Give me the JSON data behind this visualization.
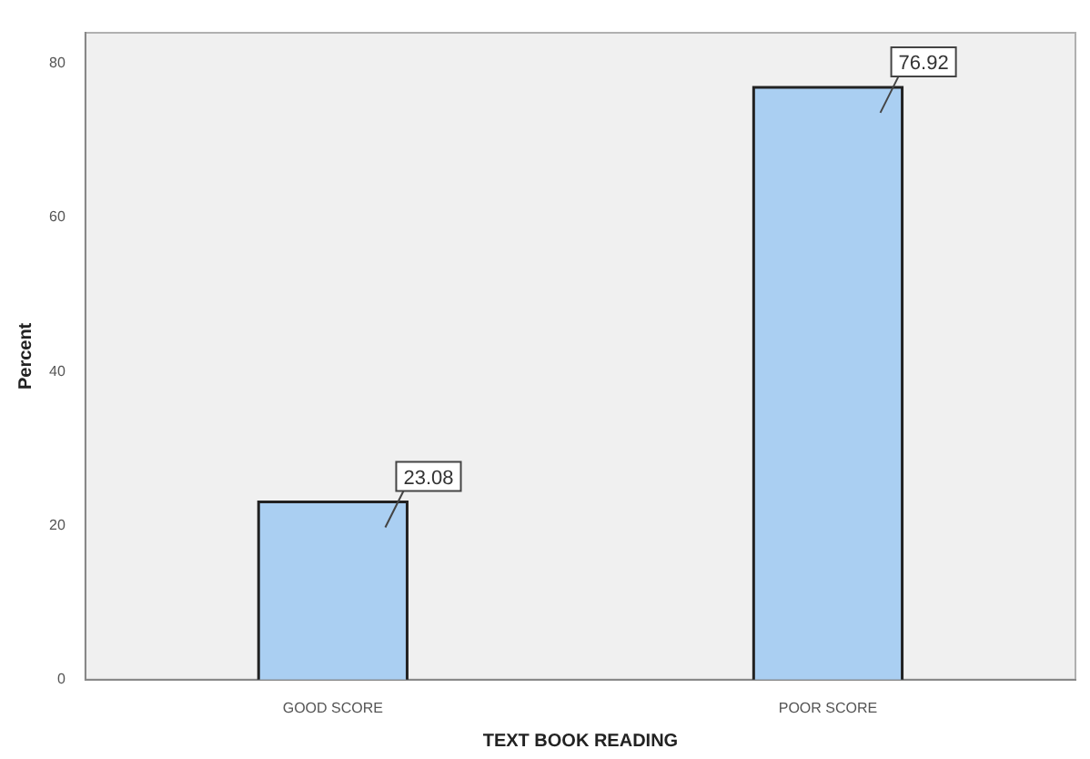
{
  "chart_data": {
    "type": "bar",
    "xlabel": "TEXT BOOK READING",
    "ylabel": "Percent",
    "categories": [
      "GOOD SCORE",
      "POOR SCORE"
    ],
    "values": [
      23.08,
      76.92
    ],
    "color": "#aacff2",
    "ylim": [
      0,
      84
    ],
    "yticks": [
      0,
      20,
      40,
      60,
      80
    ],
    "grid": false,
    "legend": false,
    "data_labels": true
  }
}
